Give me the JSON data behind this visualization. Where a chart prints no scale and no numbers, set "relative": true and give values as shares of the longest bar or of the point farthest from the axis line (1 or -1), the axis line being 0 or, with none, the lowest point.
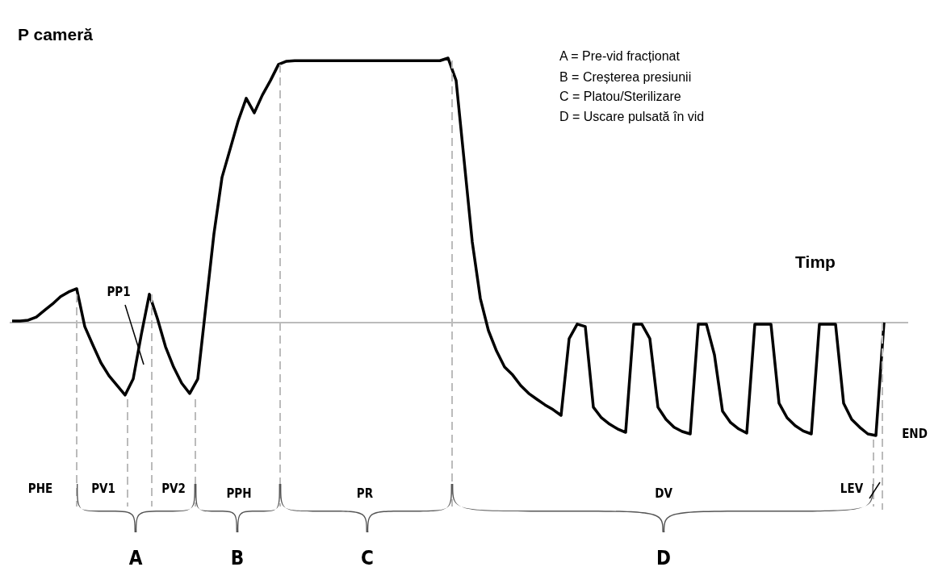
{
  "chart_data": {
    "type": "line",
    "relative": true,
    "ylabel": "P cameră",
    "xlabel": "Timp",
    "categories": [
      null,
      null,
      null,
      null,
      null,
      null,
      null,
      null,
      null,
      null,
      null,
      null,
      null,
      null,
      null,
      null,
      null,
      null,
      null,
      null,
      null,
      null,
      null,
      null,
      null,
      null,
      null,
      null,
      null,
      null,
      null,
      null,
      null,
      null,
      null,
      null,
      null,
      null,
      null,
      null,
      null,
      null,
      null,
      null,
      null,
      null,
      null,
      null,
      null,
      null,
      null,
      null,
      null,
      null,
      null,
      null,
      null,
      null,
      null,
      null,
      null,
      null,
      null,
      null,
      null,
      null,
      null,
      null,
      null,
      null,
      null,
      null,
      null,
      null,
      null,
      null,
      null,
      null,
      null,
      null,
      null,
      null,
      null,
      null,
      null,
      null,
      null,
      null,
      null,
      null,
      null,
      null,
      null,
      null,
      null,
      null,
      null,
      null,
      null,
      null,
      null,
      null,
      null,
      null,
      null,
      null,
      null,
      null,
      null
    ],
    "series": [
      {
        "color": "#000000",
        "values": [
          0.006,
          0.006,
          0.009,
          0.021,
          0.046,
          0.07,
          0.098,
          0.116,
          0.128,
          -0.015,
          -0.085,
          -0.152,
          -0.201,
          -0.238,
          -0.274,
          -0.213,
          -0.046,
          0.107,
          0.015,
          -0.091,
          -0.168,
          -0.229,
          -0.268,
          -0.213,
          0.061,
          0.335,
          0.549,
          0.655,
          0.762,
          0.848,
          0.793,
          0.86,
          0.915,
          0.976,
          0.988,
          0.99,
          0.99,
          0.99,
          0.99,
          0.99,
          0.99,
          0.99,
          0.99,
          0.99,
          0.99,
          0.99,
          0.99,
          0.99,
          0.99,
          0.99,
          0.99,
          0.99,
          0.99,
          0.99,
          1,
          0.915,
          0.61,
          0.305,
          0.091,
          -0.03,
          -0.107,
          -0.168,
          -0.198,
          -0.238,
          -0.268,
          -0.29,
          -0.311,
          -0.329,
          -0.351,
          -0.061,
          -0.006,
          -0.015,
          -0.32,
          -0.36,
          -0.384,
          -0.402,
          -0.415,
          -0.006,
          -0.006,
          -0.061,
          -0.32,
          -0.366,
          -0.396,
          -0.412,
          -0.421,
          -0.006,
          -0.006,
          -0.122,
          -0.335,
          -0.378,
          -0.402,
          -0.418,
          -0.006,
          -0.006,
          -0.006,
          -0.305,
          -0.36,
          -0.39,
          -0.41,
          -0.421,
          -0.006,
          -0.006,
          -0.006,
          -0.305,
          -0.366,
          -0.396,
          -0.421,
          -0.427,
          0
        ]
      }
    ],
    "annotations": [
      "A = Pre-vid fracționat",
      "B = Creșterea presiunii",
      "C = Platou/Sterilizare",
      "D = Uscare pulsată în vid",
      "PP1",
      "PHE",
      "PV1",
      "PV2",
      "PPH",
      "PR",
      "DV",
      "LEV",
      "END",
      "A",
      "B",
      "C",
      "D"
    ]
  }
}
